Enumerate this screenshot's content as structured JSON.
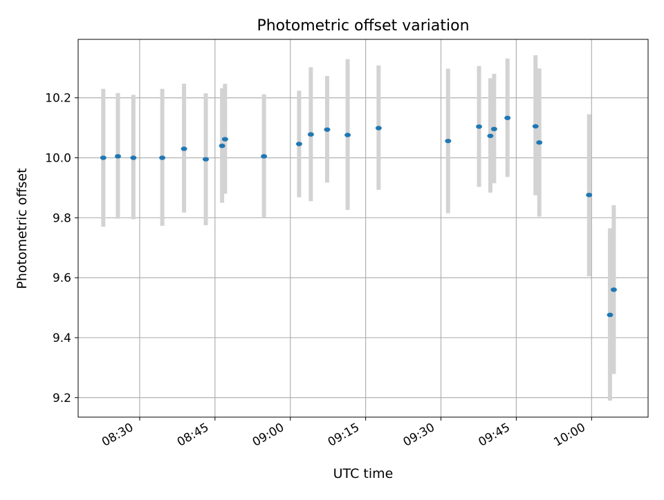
{
  "chart_data": {
    "type": "scatter",
    "title": "Photometric offset variation",
    "xlabel": "UTC time",
    "ylabel": "Photometric offset",
    "x_tick_labels": [
      "08:30",
      "08:45",
      "09:00",
      "09:15",
      "09:30",
      "09:45",
      "10:00"
    ],
    "y_tick_labels": [
      "9.2",
      "9.4",
      "9.6",
      "9.8",
      "10.0",
      "10.2"
    ],
    "xlim": [
      "08:17:45",
      "10:11:15"
    ],
    "ylim": [
      9.135,
      10.395
    ],
    "grid": true,
    "series": [
      {
        "x": [
          "08:22:45",
          "08:25:40",
          "08:28:45",
          "08:34:30",
          "08:38:50",
          "08:43:10",
          "08:46:25",
          "08:47:00",
          "08:54:45",
          "09:01:45",
          "09:04:05",
          "09:07:20",
          "09:11:25",
          "09:17:35",
          "09:31:25",
          "09:37:35",
          "09:39:50",
          "09:40:35",
          "09:43:15",
          "09:48:50",
          "09:49:35",
          "09:59:30",
          "10:03:40",
          "10:04:25"
        ],
        "y": [
          10.0,
          10.005,
          10.0,
          10.0,
          10.03,
          9.995,
          10.04,
          10.062,
          10.005,
          10.046,
          10.078,
          10.094,
          10.076,
          10.099,
          10.056,
          10.104,
          10.073,
          10.096,
          10.133,
          10.105,
          10.051,
          9.876,
          9.476,
          9.56
        ],
        "y_low": [
          9.77,
          9.797,
          9.795,
          9.773,
          9.817,
          9.775,
          9.85,
          9.88,
          9.8,
          9.868,
          9.855,
          9.917,
          9.826,
          9.893,
          9.815,
          9.903,
          9.884,
          9.915,
          9.936,
          9.875,
          9.804,
          9.605,
          9.19,
          9.279
        ],
        "y_high": [
          10.23,
          10.216,
          10.21,
          10.23,
          10.247,
          10.215,
          10.232,
          10.247,
          10.212,
          10.224,
          10.302,
          10.273,
          10.329,
          10.308,
          10.297,
          10.306,
          10.265,
          10.28,
          10.331,
          10.342,
          10.298,
          10.145,
          9.765,
          9.842
        ]
      }
    ],
    "colors": {
      "marker": "#1f77b4",
      "error_bar": "#d3d3d3",
      "grid": "#b0b0b0"
    }
  }
}
